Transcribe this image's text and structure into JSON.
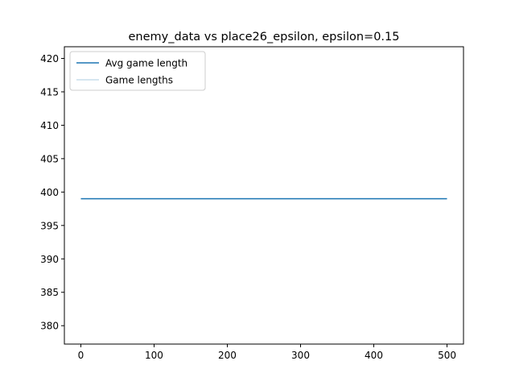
{
  "chart_data": {
    "type": "line",
    "title": "enemy_data vs place26_epsilon, epsilon=0.15",
    "xlabel": "",
    "ylabel": "",
    "xlim": [
      -22.5,
      522.5
    ],
    "ylim": [
      377.25,
      421.75
    ],
    "x_ticks": [
      0,
      100,
      200,
      300,
      400,
      500
    ],
    "x_tick_labels": [
      "0",
      "100",
      "200",
      "300",
      "400",
      "500"
    ],
    "y_ticks": [
      380,
      385,
      390,
      395,
      400,
      405,
      410,
      415,
      420
    ],
    "y_tick_labels": [
      "380",
      "385",
      "390",
      "395",
      "400",
      "405",
      "410",
      "415",
      "420"
    ],
    "grid": false,
    "legend_position": "upper-left",
    "series": [
      {
        "name": "Avg game length",
        "color": "#1f77b4",
        "opacity": 1.0,
        "x": [
          0,
          500
        ],
        "y": [
          399,
          399
        ]
      },
      {
        "name": "Game lengths",
        "color": "#1f77b4",
        "opacity": 0.25,
        "x": [
          0,
          500
        ],
        "y": [
          399,
          399
        ]
      }
    ]
  }
}
